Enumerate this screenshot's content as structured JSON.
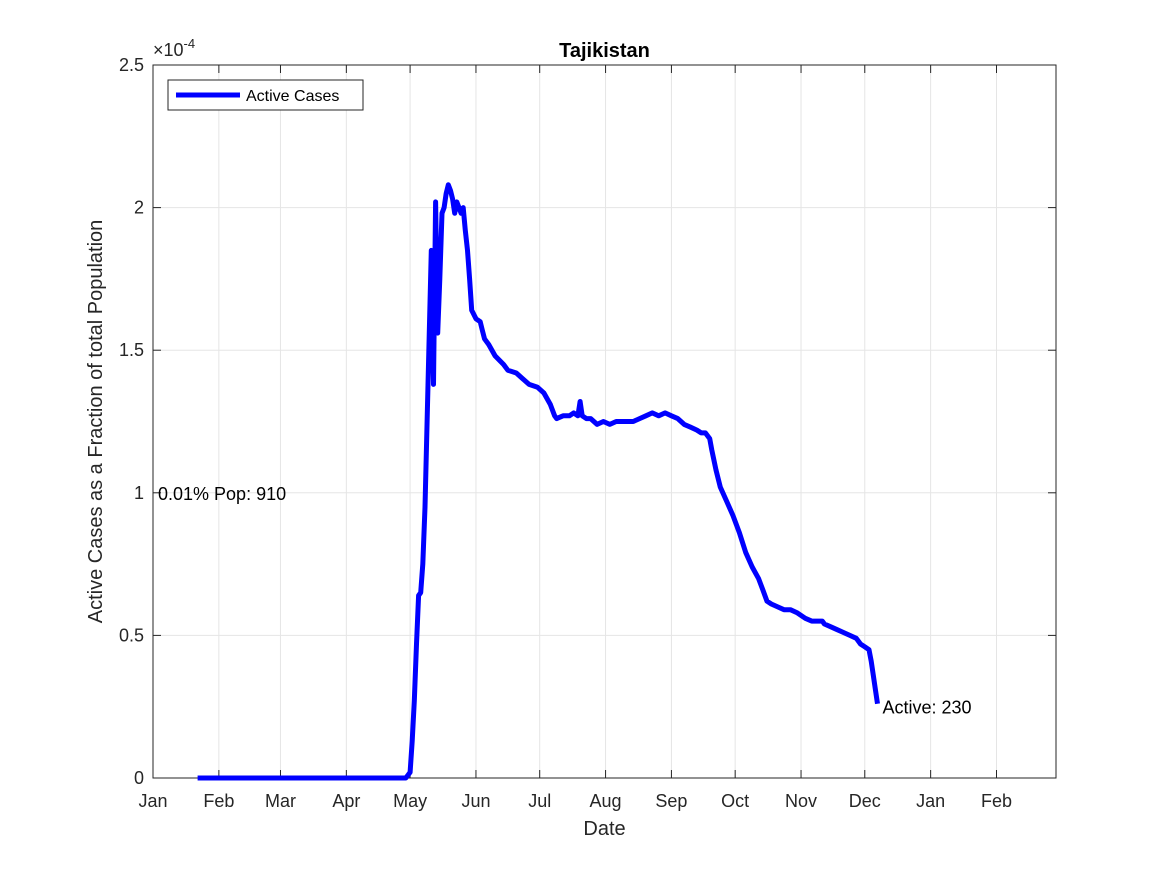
{
  "chart_data": {
    "type": "line",
    "title": "Tajikistan",
    "xlabel": "Date",
    "ylabel": "Active Cases as a Fraction of total Population",
    "y_multiplier": "×10^-4",
    "y_multiplier_base": "×10",
    "y_multiplier_exp": "-4",
    "xlim": [
      "2020-01-01",
      "2021-03-01"
    ],
    "ylim": [
      0,
      2.5
    ],
    "x_ticks": [
      {
        "date": "2020-01-01",
        "label": "Jan"
      },
      {
        "date": "2020-02-01",
        "label": "Feb"
      },
      {
        "date": "2020-03-01",
        "label": "Mar"
      },
      {
        "date": "2020-04-01",
        "label": "Apr"
      },
      {
        "date": "2020-05-01",
        "label": "May"
      },
      {
        "date": "2020-06-01",
        "label": "Jun"
      },
      {
        "date": "2020-07-01",
        "label": "Jul"
      },
      {
        "date": "2020-08-01",
        "label": "Aug"
      },
      {
        "date": "2020-09-01",
        "label": "Sep"
      },
      {
        "date": "2020-10-01",
        "label": "Oct"
      },
      {
        "date": "2020-11-01",
        "label": "Nov"
      },
      {
        "date": "2020-12-01",
        "label": "Dec"
      },
      {
        "date": "2021-01-01",
        "label": "Jan"
      },
      {
        "date": "2021-02-01",
        "label": "Feb"
      }
    ],
    "y_ticks": [
      {
        "value": 0,
        "label": "0"
      },
      {
        "value": 0.5,
        "label": "0.5"
      },
      {
        "value": 1,
        "label": "1"
      },
      {
        "value": 1.5,
        "label": "1.5"
      },
      {
        "value": 2,
        "label": "2"
      },
      {
        "value": 2.5,
        "label": "2.5"
      }
    ],
    "grid": true,
    "legend_position": "top-left",
    "series": [
      {
        "name": "Active Cases",
        "color": "#0000ff",
        "points": [
          [
            "2020-01-22",
            0
          ],
          [
            "2020-02-15",
            0
          ],
          [
            "2020-03-15",
            0
          ],
          [
            "2020-04-15",
            0
          ],
          [
            "2020-04-29",
            0
          ],
          [
            "2020-04-30",
            0.01
          ],
          [
            "2020-05-01",
            0.02
          ],
          [
            "2020-05-02",
            0.13
          ],
          [
            "2020-05-03",
            0.27
          ],
          [
            "2020-05-04",
            0.47
          ],
          [
            "2020-05-05",
            0.64
          ],
          [
            "2020-05-06",
            0.65
          ],
          [
            "2020-05-07",
            0.75
          ],
          [
            "2020-05-08",
            0.95
          ],
          [
            "2020-05-09",
            1.25
          ],
          [
            "2020-05-10",
            1.55
          ],
          [
            "2020-05-11",
            1.85
          ],
          [
            "2020-05-12",
            1.38
          ],
          [
            "2020-05-13",
            2.02
          ],
          [
            "2020-05-14",
            1.56
          ],
          [
            "2020-05-15",
            1.75
          ],
          [
            "2020-05-16",
            1.98
          ],
          [
            "2020-05-17",
            2.0
          ],
          [
            "2020-05-18",
            2.05
          ],
          [
            "2020-05-19",
            2.08
          ],
          [
            "2020-05-20",
            2.06
          ],
          [
            "2020-05-21",
            2.03
          ],
          [
            "2020-05-22",
            1.98
          ],
          [
            "2020-05-23",
            2.02
          ],
          [
            "2020-05-24",
            2.0
          ],
          [
            "2020-05-25",
            1.98
          ],
          [
            "2020-05-26",
            2.0
          ],
          [
            "2020-05-27",
            1.92
          ],
          [
            "2020-05-28",
            1.85
          ],
          [
            "2020-05-29",
            1.75
          ],
          [
            "2020-05-30",
            1.64
          ],
          [
            "2020-06-01",
            1.61
          ],
          [
            "2020-06-03",
            1.6
          ],
          [
            "2020-06-04",
            1.57
          ],
          [
            "2020-06-05",
            1.54
          ],
          [
            "2020-06-07",
            1.52
          ],
          [
            "2020-06-10",
            1.48
          ],
          [
            "2020-06-14",
            1.45
          ],
          [
            "2020-06-16",
            1.43
          ],
          [
            "2020-06-20",
            1.42
          ],
          [
            "2020-06-23",
            1.4
          ],
          [
            "2020-06-26",
            1.38
          ],
          [
            "2020-06-30",
            1.37
          ],
          [
            "2020-07-03",
            1.35
          ],
          [
            "2020-07-06",
            1.31
          ],
          [
            "2020-07-08",
            1.27
          ],
          [
            "2020-07-09",
            1.26
          ],
          [
            "2020-07-12",
            1.27
          ],
          [
            "2020-07-15",
            1.27
          ],
          [
            "2020-07-17",
            1.28
          ],
          [
            "2020-07-19",
            1.27
          ],
          [
            "2020-07-20",
            1.32
          ],
          [
            "2020-07-21",
            1.27
          ],
          [
            "2020-07-23",
            1.26
          ],
          [
            "2020-07-25",
            1.26
          ],
          [
            "2020-07-28",
            1.24
          ],
          [
            "2020-07-31",
            1.25
          ],
          [
            "2020-08-03",
            1.24
          ],
          [
            "2020-08-06",
            1.25
          ],
          [
            "2020-08-10",
            1.25
          ],
          [
            "2020-08-14",
            1.25
          ],
          [
            "2020-08-17",
            1.26
          ],
          [
            "2020-08-20",
            1.27
          ],
          [
            "2020-08-23",
            1.28
          ],
          [
            "2020-08-26",
            1.27
          ],
          [
            "2020-08-29",
            1.28
          ],
          [
            "2020-09-01",
            1.27
          ],
          [
            "2020-09-04",
            1.26
          ],
          [
            "2020-09-07",
            1.24
          ],
          [
            "2020-09-10",
            1.23
          ],
          [
            "2020-09-13",
            1.22
          ],
          [
            "2020-09-15",
            1.21
          ],
          [
            "2020-09-17",
            1.21
          ],
          [
            "2020-09-19",
            1.19
          ],
          [
            "2020-09-20",
            1.15
          ],
          [
            "2020-09-22",
            1.08
          ],
          [
            "2020-09-24",
            1.02
          ],
          [
            "2020-09-27",
            0.97
          ],
          [
            "2020-09-30",
            0.92
          ],
          [
            "2020-10-03",
            0.86
          ],
          [
            "2020-10-06",
            0.79
          ],
          [
            "2020-10-09",
            0.74
          ],
          [
            "2020-10-12",
            0.7
          ],
          [
            "2020-10-14",
            0.66
          ],
          [
            "2020-10-16",
            0.62
          ],
          [
            "2020-10-18",
            0.61
          ],
          [
            "2020-10-21",
            0.6
          ],
          [
            "2020-10-24",
            0.59
          ],
          [
            "2020-10-27",
            0.59
          ],
          [
            "2020-10-30",
            0.58
          ],
          [
            "2020-11-03",
            0.56
          ],
          [
            "2020-11-06",
            0.55
          ],
          [
            "2020-11-09",
            0.55
          ],
          [
            "2020-11-11",
            0.55
          ],
          [
            "2020-11-12",
            0.54
          ],
          [
            "2020-11-15",
            0.53
          ],
          [
            "2020-11-18",
            0.52
          ],
          [
            "2020-11-21",
            0.51
          ],
          [
            "2020-11-24",
            0.5
          ],
          [
            "2020-11-27",
            0.49
          ],
          [
            "2020-11-29",
            0.47
          ],
          [
            "2020-12-01",
            0.46
          ],
          [
            "2020-12-03",
            0.45
          ],
          [
            "2020-12-04",
            0.41
          ],
          [
            "2020-12-05",
            0.36
          ],
          [
            "2020-12-06",
            0.31
          ],
          [
            "2020-12-07",
            0.26
          ]
        ]
      }
    ],
    "annotations": [
      {
        "text": "0.01% Pop: 910",
        "at_date": "2020-01-01",
        "at_value": 1.0,
        "anchor": "right-of-point"
      },
      {
        "text": "Active: 230",
        "at_date": "2020-12-07",
        "at_value": 0.25,
        "anchor": "right-of-point"
      }
    ]
  }
}
